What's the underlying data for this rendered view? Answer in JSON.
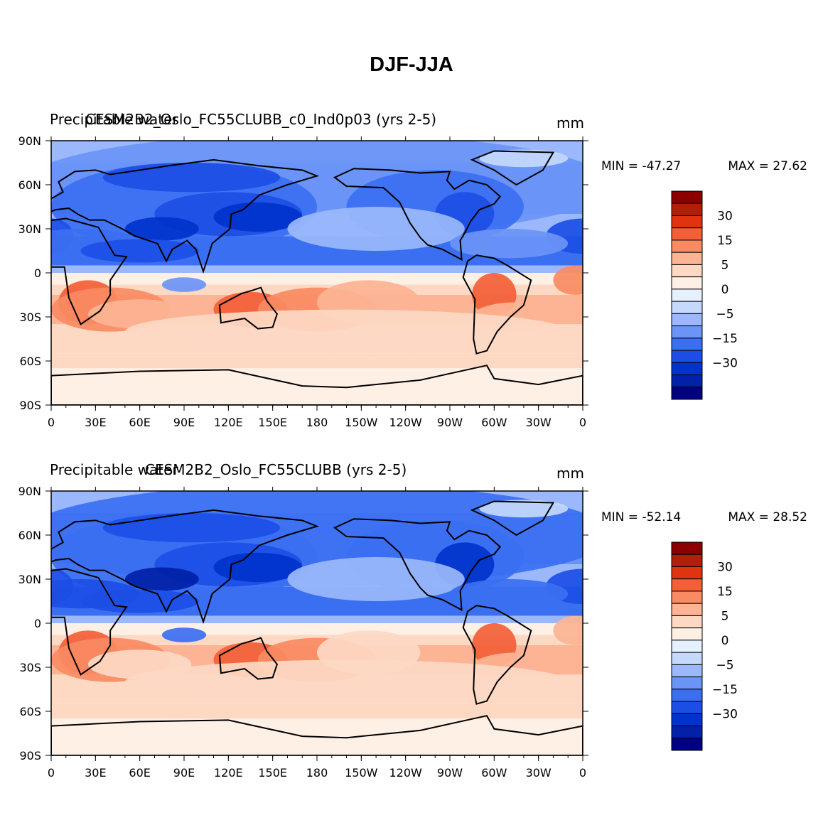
{
  "title": "DJF-JJA",
  "colors": {
    "levels": [
      "#000080",
      "#0021a8",
      "#0033cc",
      "#1c4ee6",
      "#3b6ff2",
      "#6b94f7",
      "#9ab8fb",
      "#c4d9fd",
      "#e6f1ff",
      "#fff0e6",
      "#fdd9c4",
      "#fcb494",
      "#f98b63",
      "#f35f37",
      "#e03410",
      "#b21f08",
      "#8c0000"
    ],
    "land_outline": "#000000",
    "axis": "#000000"
  },
  "chart_data": [
    {
      "type": "heatmap",
      "variable": "Precipitable water",
      "run_label": "CESM2B2_Oslo_FC55CLUBB_c0_Ind0p03 (yrs 2-5)",
      "units": "mm",
      "min_label": "MIN = -47.27",
      "max_label": "MAX = 27.62",
      "min": -47.27,
      "max": 27.62,
      "x_ticks": [
        "0",
        "30E",
        "60E",
        "90E",
        "120E",
        "150E",
        "180",
        "150W",
        "120W",
        "90W",
        "60W",
        "30W",
        "0"
      ],
      "y_ticks": [
        "90N",
        "60N",
        "30N",
        "0",
        "30S",
        "60S",
        "90S"
      ],
      "xlim": [
        0,
        360
      ],
      "ylim": [
        -90,
        90
      ],
      "colorbar_levels": [
        -50,
        -40,
        -30,
        -20,
        -15,
        -10,
        -5,
        -2,
        0,
        2,
        5,
        10,
        15,
        20,
        30,
        40
      ],
      "colorbar_labels": [
        {
          "level": 30,
          "text": "30"
        },
        {
          "level": 15,
          "text": "15"
        },
        {
          "level": 5,
          "text": "5"
        },
        {
          "level": 0,
          "text": "0"
        },
        {
          "level": -5,
          "text": "−5"
        },
        {
          "level": -15,
          "text": "−15"
        },
        {
          "level": -30,
          "text": "−30"
        }
      ]
    },
    {
      "type": "heatmap",
      "variable": "Precipitable water",
      "run_label": "CESM2B2_Oslo_FC55CLUBB (yrs 2-5)",
      "units": "mm",
      "min_label": "MIN = -52.14",
      "max_label": "MAX = 28.52",
      "min": -52.14,
      "max": 28.52,
      "x_ticks": [
        "0",
        "30E",
        "60E",
        "90E",
        "120E",
        "150E",
        "180",
        "150W",
        "120W",
        "90W",
        "60W",
        "30W",
        "0"
      ],
      "y_ticks": [
        "90N",
        "60N",
        "30N",
        "0",
        "30S",
        "60S",
        "90S"
      ],
      "xlim": [
        0,
        360
      ],
      "ylim": [
        -90,
        90
      ],
      "colorbar_levels": [
        -50,
        -40,
        -30,
        -20,
        -15,
        -10,
        -5,
        -2,
        0,
        2,
        5,
        10,
        15,
        20,
        30,
        40
      ],
      "colorbar_labels": [
        {
          "level": 30,
          "text": "30"
        },
        {
          "level": 15,
          "text": "15"
        },
        {
          "level": 5,
          "text": "5"
        },
        {
          "level": 0,
          "text": "0"
        },
        {
          "level": -5,
          "text": "−5"
        },
        {
          "level": -15,
          "text": "−15"
        },
        {
          "level": -30,
          "text": "−30"
        }
      ]
    }
  ]
}
